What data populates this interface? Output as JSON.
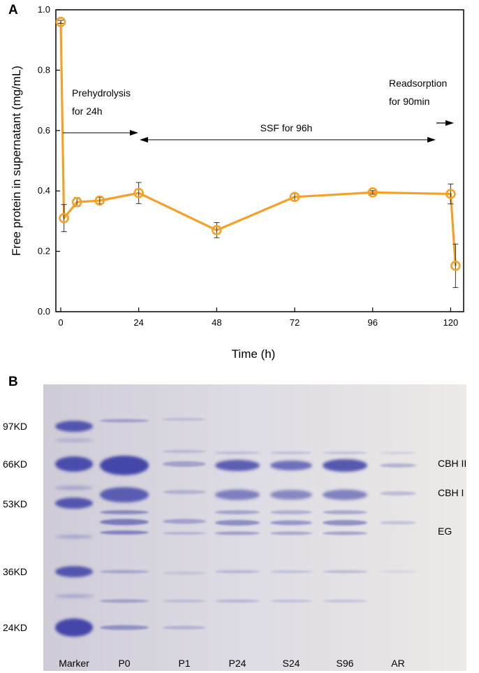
{
  "chart_data": [
    {
      "panel": "A",
      "type": "line",
      "xlabel": "Time (h)",
      "ylabel": "Free protein in  supernatant  (mg/mL)",
      "xlim": [
        -1.5,
        124
      ],
      "ylim": [
        0.0,
        1.0
      ],
      "xticks": [
        0,
        24,
        48,
        72,
        96,
        120
      ],
      "yticks": [
        0.0,
        0.2,
        0.4,
        0.6,
        0.8,
        1.0
      ],
      "ytick_labels": [
        "0.0",
        "0.2",
        "0.4",
        "0.6",
        "0.8",
        "1.0"
      ],
      "color": "#f5a128",
      "series": [
        {
          "x": [
            0,
            1,
            5,
            12,
            24,
            48,
            72,
            96,
            120,
            121.5
          ],
          "y": [
            0.96,
            0.31,
            0.363,
            0.368,
            0.393,
            0.27,
            0.38,
            0.395,
            0.39,
            0.152
          ],
          "err": [
            0.005,
            0.045,
            0.015,
            0.01,
            0.035,
            0.025,
            0.012,
            0.006,
            0.033,
            0.072
          ]
        }
      ],
      "annotations": [
        {
          "text": "Prehydrolysis",
          "line2": "for 24h"
        },
        {
          "text": "SSF for 96h"
        },
        {
          "text": "Readsorption",
          "line2": "for 90min"
        }
      ]
    }
  ],
  "gel": {
    "panel": "B",
    "marker_labels": [
      "97KD",
      "66KD",
      "53KD",
      "36KD",
      "24KD"
    ],
    "lane_labels": [
      "Marker",
      "P0",
      "P1",
      "P24",
      "S24",
      "S96",
      "AR"
    ],
    "band_labels": [
      "CBH II",
      "CBH I",
      "EG"
    ],
    "stain_color": "#3c3fa6",
    "background_color": "#d9d6e0"
  }
}
